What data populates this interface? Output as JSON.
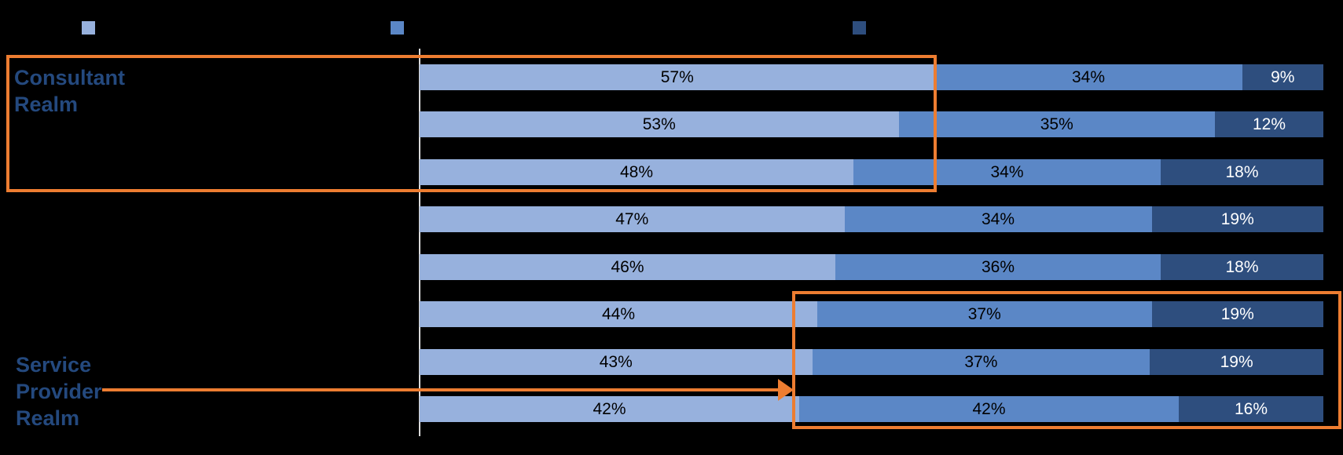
{
  "chart_data": {
    "type": "bar",
    "orientation": "horizontal",
    "stacked": true,
    "grid": false,
    "xlim": [
      0,
      100
    ],
    "value_suffix": "%",
    "axis_line_color": "#D9D9D9",
    "legend": {
      "position": "top",
      "labels_visible": false
    },
    "series": [
      {
        "name": "segment-light-blue",
        "color": "#97B1DD",
        "label_color": "#000000",
        "values": [
          57,
          53,
          48,
          47,
          46,
          44,
          43,
          42
        ]
      },
      {
        "name": "segment-medium-blue",
        "color": "#5B87C6",
        "label_color": "#000000",
        "values": [
          34,
          35,
          34,
          34,
          36,
          37,
          37,
          42
        ]
      },
      {
        "name": "segment-dark-blue",
        "color": "#2E4E7E",
        "label_color": "#FFFFFF",
        "values": [
          9,
          12,
          18,
          19,
          18,
          19,
          19,
          16
        ]
      }
    ],
    "data_labels": [
      "57%",
      "34%",
      "9%",
      "53%",
      "35%",
      "12%",
      "48%",
      "34%",
      "18%",
      "47%",
      "34%",
      "19%",
      "46%",
      "36%",
      "18%",
      "44%",
      "37%",
      "19%",
      "43%",
      "37%",
      "19%",
      "42%",
      "42%",
      "16%"
    ]
  },
  "annotations": {
    "consultant_label": "Consultant\nRealm",
    "service_provider_label": "Service\nProvider\nRealm",
    "label_color": "#24497E",
    "accent_color": "#ED7D31"
  }
}
